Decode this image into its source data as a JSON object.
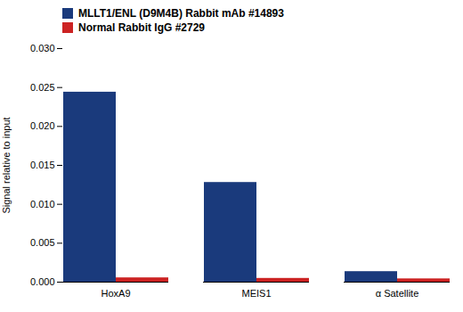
{
  "chart_data": {
    "type": "bar",
    "categories": [
      "HoxA9",
      "MEIS1",
      "α Satellite"
    ],
    "series": [
      {
        "name": "MLLT1/ENL (D9M4B) Rabbit mAb #14893",
        "color": "#1a3a7c",
        "values": [
          0.0244,
          0.0128,
          0.00135
        ]
      },
      {
        "name": "Normal Rabbit IgG #2729",
        "color": "#cc2222",
        "values": [
          0.00055,
          0.00048,
          0.00042
        ]
      }
    ],
    "ylabel": "Signal relative to input",
    "ylim": [
      0,
      0.03
    ],
    "yticks": [
      {
        "value": 0,
        "label": "0.000"
      },
      {
        "value": 0.005,
        "label": "0.005"
      },
      {
        "value": 0.01,
        "label": "0.010"
      },
      {
        "value": 0.015,
        "label": "0.015"
      },
      {
        "value": 0.02,
        "label": "0.020"
      },
      {
        "value": 0.025,
        "label": "0.025"
      },
      {
        "value": 0.03,
        "label": "0.030"
      }
    ],
    "legend": "upper left"
  }
}
